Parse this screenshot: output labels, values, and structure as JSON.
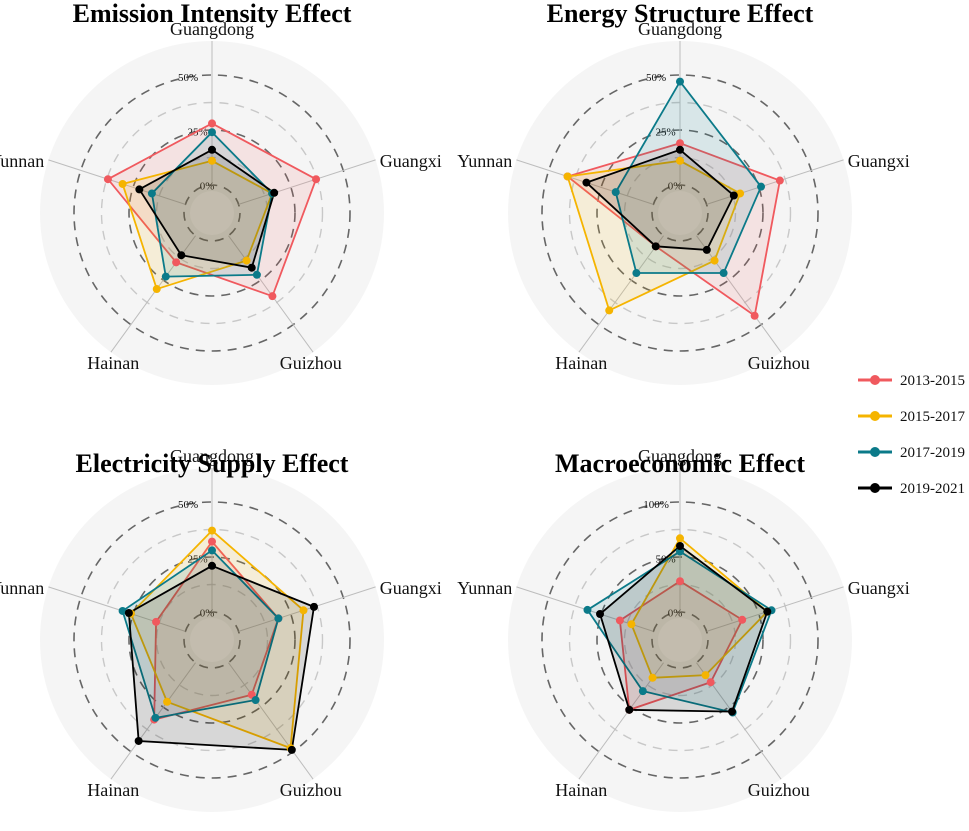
{
  "legend": {
    "items": [
      {
        "label": "2013-2015",
        "color": "#f0595e"
      },
      {
        "label": "2015-2017",
        "color": "#f5b400"
      },
      {
        "label": "2017-2019",
        "color": "#0b7a89"
      },
      {
        "label": "2019-2021",
        "color": "#000000"
      }
    ]
  },
  "chart_data": [
    {
      "type": "radar",
      "title": "Emission Intensity Effect",
      "axes": [
        "Guangdong",
        "Guangxi",
        "Guizhou",
        "Hainan",
        "Yunnan"
      ],
      "tick_labels": [
        "0%",
        "25%",
        "50%"
      ],
      "series": [
        {
          "name": "2013-2015",
          "values": [
            28,
            37,
            34,
            15,
            37
          ]
        },
        {
          "name": "2015-2017",
          "values": [
            11,
            16,
            14,
            30,
            30
          ]
        },
        {
          "name": "2017-2019",
          "values": [
            24,
            16,
            22,
            23,
            16
          ]
        },
        {
          "name": "2019-2021",
          "values": [
            16,
            17,
            18,
            11,
            22
          ]
        }
      ]
    },
    {
      "type": "radar",
      "title": "Energy Structure Effect",
      "axes": [
        "Guangdong",
        "Guangxi",
        "Guizhou",
        "Hainan",
        "Yunnan"
      ],
      "tick_labels": [
        "0%",
        "25%",
        "50%"
      ],
      "series": [
        {
          "name": "2013-2015",
          "values": [
            19,
            35,
            45,
            6,
            41
          ]
        },
        {
          "name": "2015-2017",
          "values": [
            11,
            16,
            14,
            42,
            41
          ]
        },
        {
          "name": "2017-2019",
          "values": [
            47,
            26,
            21,
            21,
            18
          ]
        },
        {
          "name": "2019-2021",
          "values": [
            16,
            13,
            8,
            6,
            32
          ]
        }
      ]
    },
    {
      "type": "radar",
      "title": "Electricity Supply Effect",
      "axes": [
        "Guangdong",
        "Guangxi",
        "Guizhou",
        "Hainan",
        "Yunnan"
      ],
      "tick_labels": [
        "0%",
        "25%",
        "50%"
      ],
      "series": [
        {
          "name": "2013-2015",
          "values": [
            32,
            19,
            18,
            32,
            14
          ]
        },
        {
          "name": "2015-2017",
          "values": [
            37,
            31,
            48,
            22,
            26
          ]
        },
        {
          "name": "2017-2019",
          "values": [
            28,
            19,
            21,
            31,
            30
          ]
        },
        {
          "name": "2019-2021",
          "values": [
            21,
            36,
            49,
            44,
            27
          ]
        }
      ]
    },
    {
      "type": "radar",
      "title": "Macroeconomic Effect",
      "axes": [
        "Guangdong",
        "Guangxi",
        "Guizhou",
        "Hainan",
        "Yunnan"
      ],
      "tick_labels": [
        "0%",
        "50%",
        "100%"
      ],
      "series": [
        {
          "name": "2013-2015",
          "values": [
            28,
            34,
            22,
            53,
            32
          ]
        },
        {
          "name": "2015-2017",
          "values": [
            67,
            58,
            14,
            17,
            21
          ]
        },
        {
          "name": "2017-2019",
          "values": [
            55,
            62,
            56,
            32,
            63
          ]
        },
        {
          "name": "2019-2021",
          "values": [
            60,
            58,
            55,
            53,
            51
          ]
        }
      ]
    }
  ]
}
